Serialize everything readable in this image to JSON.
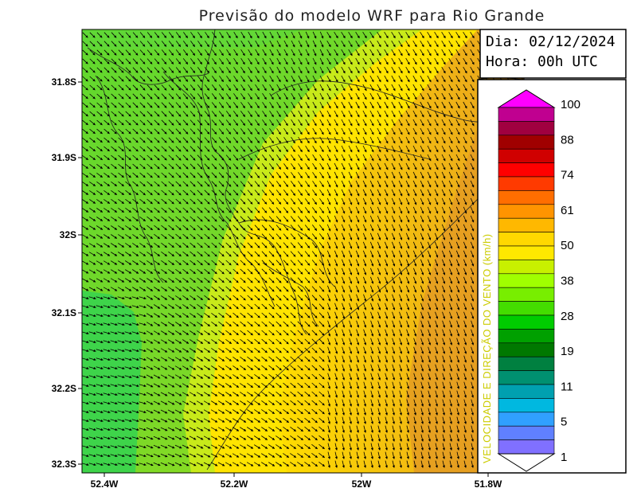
{
  "title": "Previsão do modelo WRF para Rio Grande",
  "date_label": "Dia: 02/12/2024",
  "time_label": "Hora: 00h UTC",
  "y_ticks": [
    "31.8S",
    "31.9S",
    "32S",
    "32.1S",
    "32.2S",
    "32.3S"
  ],
  "x_ticks": [
    "52.4W",
    "52.2W",
    "52W",
    "51.8W"
  ],
  "legend": {
    "title": "VELOCIDADE E DIREÇÃO DO VENTO (km/h)",
    "labels": [
      "100",
      "88",
      "74",
      "61",
      "50",
      "38",
      "28",
      "19",
      "11",
      "5",
      "1"
    ],
    "colors": [
      "#ff00ff",
      "#c00090",
      "#a00040",
      "#a00000",
      "#d00000",
      "#ff0000",
      "#ff3a00",
      "#ff6e00",
      "#ff9400",
      "#ffb800",
      "#ffd800",
      "#ffe800",
      "#c8f000",
      "#a0ff00",
      "#78ee00",
      "#44dd00",
      "#00cc00",
      "#00a000",
      "#007800",
      "#008040",
      "#009070",
      "#00a0b0",
      "#00b8e0",
      "#30a0ff",
      "#6080ff",
      "#8070ff",
      "#ffffff"
    ]
  }
}
